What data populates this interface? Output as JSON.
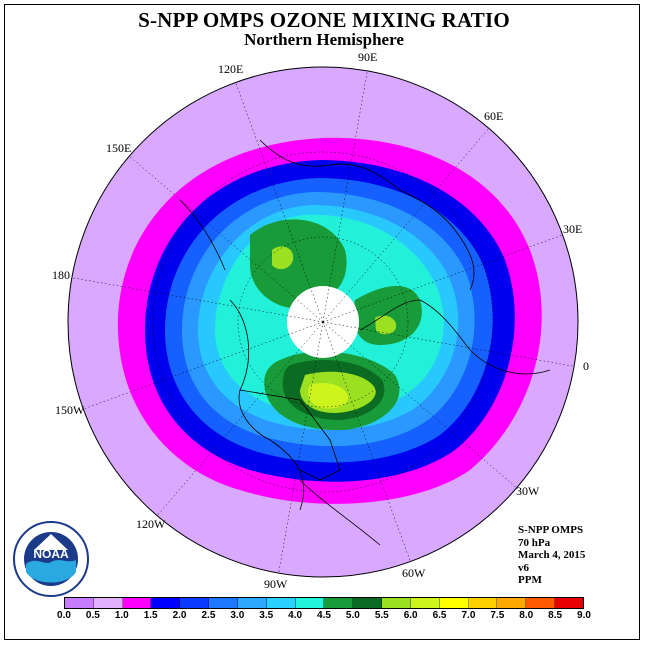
{
  "title": "S-NPP OMPS OZONE MIXING RATIO",
  "subtitle": "Northern Hemisphere",
  "logo_text": "NOAA",
  "info": {
    "instrument": "S-NPP OMPS",
    "level": "70 hPa",
    "date": "March 4, 2015",
    "version": "v6",
    "units": "PPM"
  },
  "longitude_labels": [
    "90E",
    "60E",
    "30E",
    "0",
    "30W",
    "60W",
    "90W",
    "120W",
    "150W",
    "180",
    "150E",
    "120E"
  ],
  "colorbar": {
    "ticks": [
      "0.0",
      "0.5",
      "1.0",
      "1.5",
      "2.0",
      "2.5",
      "3.0",
      "3.5",
      "4.0",
      "4.5",
      "5.0",
      "5.5",
      "6.0",
      "6.5",
      "7.0",
      "7.5",
      "8.0",
      "8.5",
      "9.0"
    ],
    "colors": [
      "#c77bff",
      "#e0b0ff",
      "#ff00ff",
      "#0000ff",
      "#0a3cff",
      "#1e78ff",
      "#2ea8ff",
      "#2ad0ff",
      "#22f5dc",
      "#1a9b3a",
      "#0c6b23",
      "#9be021",
      "#cdf51c",
      "#ffff00",
      "#ffd000",
      "#ffa800",
      "#ff5a00",
      "#e60000",
      "#8b5a3c"
    ]
  }
}
